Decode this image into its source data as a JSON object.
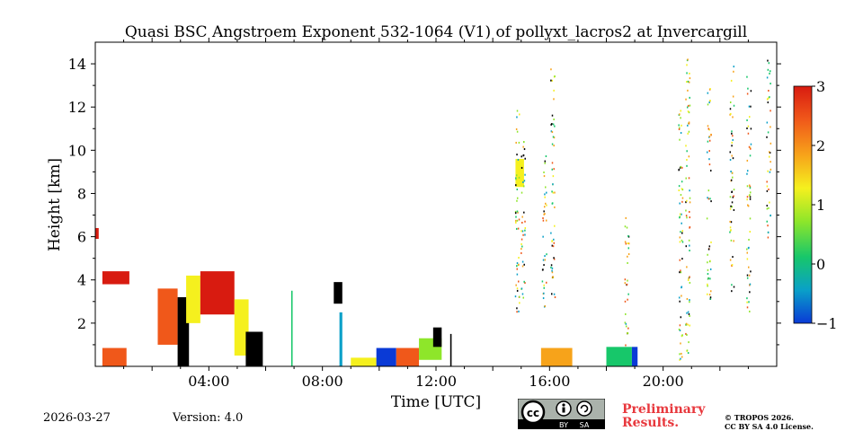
{
  "chart_data": {
    "type": "heatmap",
    "title": "Quasi BSC Angstroem Exponent 532-1064 (V1) of pollyxt_lacros2 at Invercargill",
    "xlabel": "Time [UTC]",
    "ylabel": "Height [km]",
    "xlim": [
      0,
      24
    ],
    "ylim": [
      0,
      15
    ],
    "x_tick_values": [
      4,
      8,
      12,
      16,
      20
    ],
    "x_tick_labels": [
      "04:00",
      "08:00",
      "12:00",
      "16:00",
      "20:00"
    ],
    "y_tick_values": [
      2,
      4,
      6,
      8,
      10,
      12,
      14
    ],
    "y_tick_labels": [
      "2",
      "4",
      "6",
      "8",
      "10",
      "12",
      "14"
    ],
    "colorbar": {
      "min": -1,
      "max": 3,
      "ticks": [
        3,
        2,
        1,
        0,
        -1
      ],
      "tick_labels": [
        "3",
        "2",
        "1",
        "0",
        "−1"
      ],
      "colors": [
        "#0a3ad6",
        "#0aa0c8",
        "#17c76a",
        "#8ee62a",
        "#f5f01e",
        "#f7a31a",
        "#f0581a",
        "#d81b10"
      ]
    },
    "data_regions": [
      {
        "t0": 0.0,
        "t1": 0.12,
        "h0": 5.9,
        "h1": 6.4,
        "value": 2.8
      },
      {
        "t0": 0.25,
        "t1": 1.2,
        "h0": 3.8,
        "h1": 4.4,
        "value": 2.6
      },
      {
        "t0": 0.25,
        "t1": 1.1,
        "h0": 0.0,
        "h1": 0.85,
        "value": 2.2
      },
      {
        "t0": 2.2,
        "t1": 2.9,
        "h0": 1.0,
        "h1": 3.6,
        "value": 2.0
      },
      {
        "t0": 2.9,
        "t1": 3.3,
        "h0": 0.0,
        "h1": 3.2,
        "value": -1.2
      },
      {
        "t0": 3.2,
        "t1": 3.7,
        "h0": 2.0,
        "h1": 4.2,
        "value": 1.4
      },
      {
        "t0": 3.7,
        "t1": 4.9,
        "h0": 2.4,
        "h1": 4.4,
        "value": 2.7
      },
      {
        "t0": 4.9,
        "t1": 5.4,
        "h0": 0.5,
        "h1": 3.1,
        "value": 1.0
      },
      {
        "t0": 5.3,
        "t1": 5.9,
        "h0": 0.0,
        "h1": 1.6,
        "value": -1.2
      },
      {
        "t0": 6.9,
        "t1": 6.95,
        "h0": 0.0,
        "h1": 3.5,
        "value": 0.2
      },
      {
        "t0": 8.4,
        "t1": 8.7,
        "h0": 2.9,
        "h1": 3.9,
        "value": -1.2
      },
      {
        "t0": 8.6,
        "t1": 8.7,
        "h0": 0.0,
        "h1": 2.5,
        "value": -0.5
      },
      {
        "t0": 9.0,
        "t1": 9.9,
        "h0": 0.0,
        "h1": 0.4,
        "value": 1.2
      },
      {
        "t0": 9.9,
        "t1": 10.6,
        "h0": 0.0,
        "h1": 0.85,
        "value": -0.8
      },
      {
        "t0": 10.6,
        "t1": 11.4,
        "h0": 0.0,
        "h1": 0.85,
        "value": 2.3
      },
      {
        "t0": 11.4,
        "t1": 12.2,
        "h0": 0.3,
        "h1": 1.3,
        "value": 0.8
      },
      {
        "t0": 11.9,
        "t1": 12.2,
        "h0": 0.9,
        "h1": 1.8,
        "value": -1.2
      },
      {
        "t0": 12.5,
        "t1": 12.55,
        "h0": 0.0,
        "h1": 1.5,
        "value": -1.2
      },
      {
        "t0": 14.8,
        "t1": 15.1,
        "h0": 8.3,
        "h1": 9.6,
        "value": 1.0
      },
      {
        "t0": 15.7,
        "t1": 16.8,
        "h0": 0.0,
        "h1": 0.85,
        "value": 1.5
      },
      {
        "t0": 18.0,
        "t1": 18.9,
        "h0": 0.0,
        "h1": 0.9,
        "value": 0.3
      },
      {
        "t0": 18.9,
        "t1": 19.1,
        "h0": 0.0,
        "h1": 0.9,
        "value": -0.8
      }
    ],
    "sparse_columns": [
      {
        "t": 14.85,
        "h0": 2.5,
        "h1": 12.0
      },
      {
        "t": 15.05,
        "h0": 3.0,
        "h1": 10.5
      },
      {
        "t": 15.8,
        "h0": 2.8,
        "h1": 9.8
      },
      {
        "t": 16.1,
        "h0": 3.2,
        "h1": 13.8
      },
      {
        "t": 18.7,
        "h0": 1.0,
        "h1": 7.0
      },
      {
        "t": 20.6,
        "h0": 0.3,
        "h1": 12.0
      },
      {
        "t": 20.85,
        "h0": 0.5,
        "h1": 14.5
      },
      {
        "t": 21.6,
        "h0": 3.0,
        "h1": 13.0
      },
      {
        "t": 22.4,
        "h0": 3.5,
        "h1": 14.0
      },
      {
        "t": 23.0,
        "h0": 2.5,
        "h1": 13.5
      },
      {
        "t": 23.7,
        "h0": 6.0,
        "h1": 14.2
      }
    ]
  },
  "footer": {
    "date": "2026-03-27",
    "version": "Version: 4.0",
    "cc_by": "BY",
    "cc_sa": "SA",
    "preliminary_line1": "Preliminary",
    "preliminary_line2": "Results.",
    "copyright_line1": "© TROPOS 2026.",
    "copyright_line2": "CC BY SA 4.0 License."
  }
}
